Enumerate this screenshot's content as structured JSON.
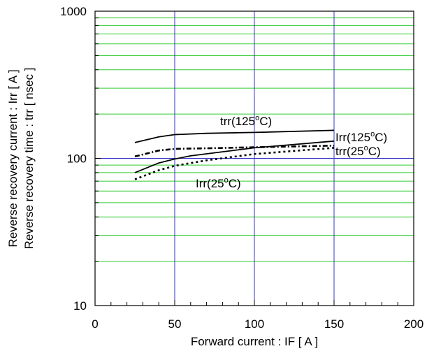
{
  "chart_data": {
    "type": "line",
    "xlabel": "Forward current : IF [ A ]",
    "ylabel_lines": [
      "Reverse recovery current : Irr [ A ]",
      "Reverse recovery time : trr [ nsec ]"
    ],
    "xlim": [
      0,
      200
    ],
    "ylim": [
      10,
      1000
    ],
    "yscale": "log",
    "x_ticks": [
      0,
      50,
      100,
      150,
      200
    ],
    "x_tick_labels": [
      "0",
      "50",
      "100",
      "150",
      "200"
    ],
    "y_ticks": [
      10,
      100,
      1000
    ],
    "y_tick_labels": [
      "10",
      "100",
      "1000"
    ],
    "grid": {
      "major_color": "#3333cc",
      "minor_color": "#33cc33",
      "x_major": [
        50,
        100,
        150
      ],
      "y_major": [
        100
      ],
      "y_minor": true
    },
    "series": [
      {
        "label_base": "trr(125",
        "label_sup": "o",
        "label_tail": "C)",
        "style": "solid",
        "x": [
          25,
          40,
          50,
          70,
          100,
          150
        ],
        "y": [
          128,
          140,
          145,
          148,
          150,
          155
        ]
      },
      {
        "label_base": "Irr(125",
        "label_sup": "o",
        "label_tail": "C)",
        "style": "solid",
        "x": [
          25,
          40,
          50,
          60,
          100,
          150
        ],
        "y": [
          80,
          93,
          99,
          104,
          118,
          131
        ]
      },
      {
        "label_base": "trr(25",
        "label_sup": "o",
        "label_tail": "C)",
        "style": "dashdot",
        "x": [
          25,
          40,
          50,
          70,
          100,
          150
        ],
        "y": [
          103,
          113,
          116,
          117,
          119,
          122
        ]
      },
      {
        "label_base": "Irr(25",
        "label_sup": "o",
        "label_tail": "C)",
        "style": "dotted",
        "x": [
          25,
          40,
          50,
          70,
          100,
          150
        ],
        "y": [
          72,
          83,
          89,
          97,
          107,
          118
        ]
      }
    ]
  }
}
